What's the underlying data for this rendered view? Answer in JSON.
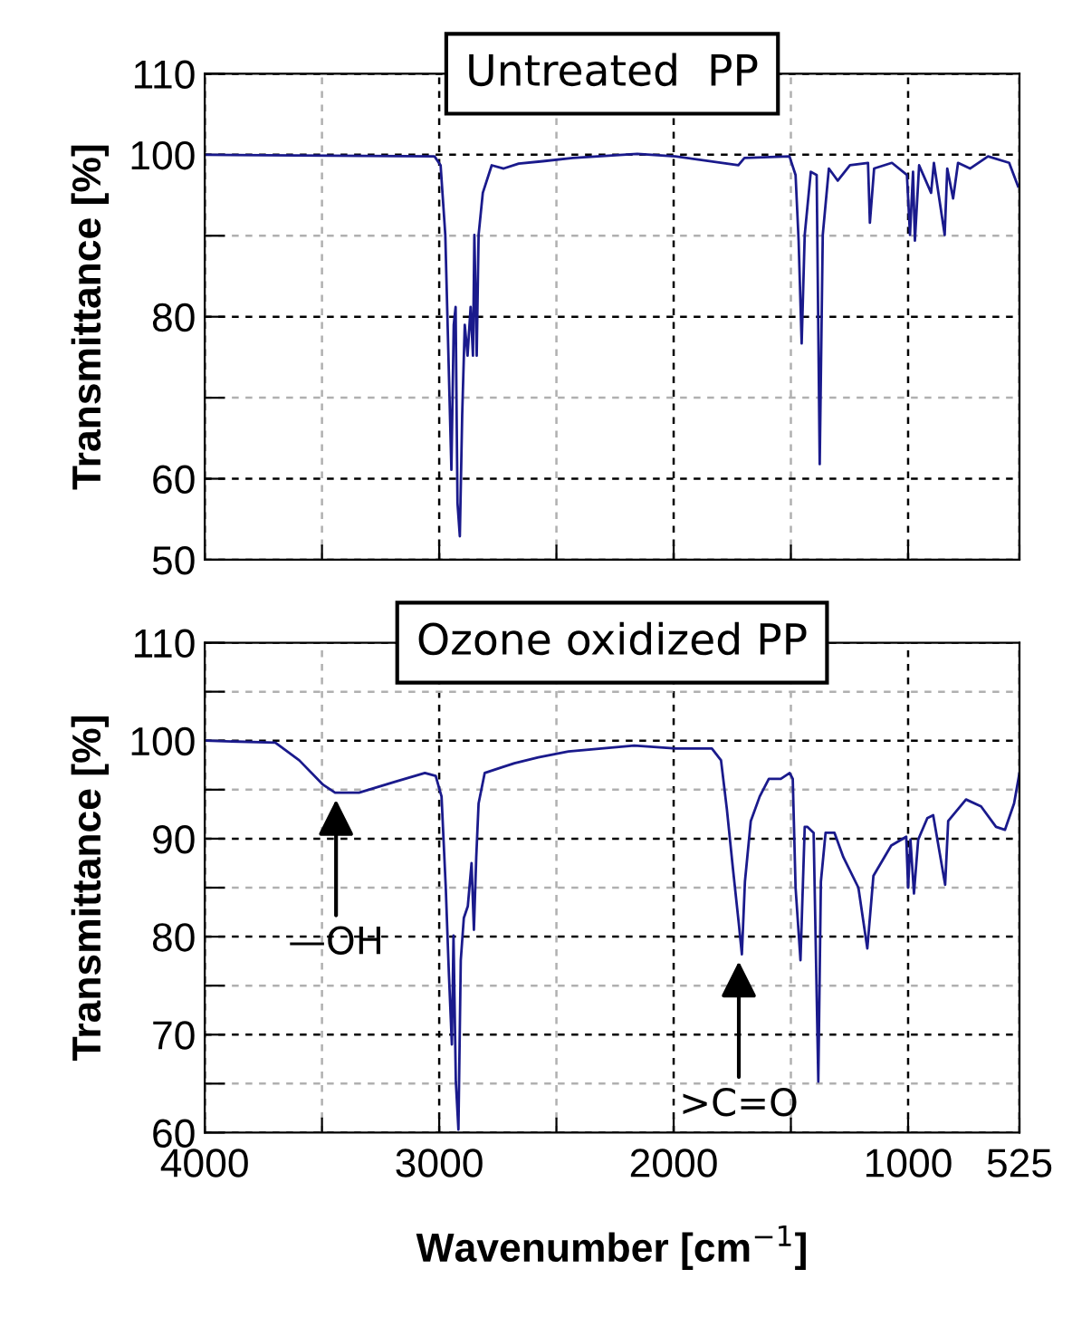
{
  "chart_data": [
    {
      "type": "line",
      "title": "Untreated  PP",
      "ylabel": "Transmittance [%]",
      "xlim": [
        4000,
        525
      ],
      "ylim": [
        50,
        110
      ],
      "xticks": [
        4000,
        {
          "value": 3500,
          "label": null
        },
        3000,
        {
          "value": 2500,
          "label": null
        },
        2000,
        {
          "value": 1500,
          "label": null
        },
        1000,
        525
      ],
      "yticks": [
        50,
        60,
        {
          "value": 70,
          "label": null
        },
        80,
        {
          "value": 90,
          "label": null
        },
        100,
        110
      ],
      "tick_labels": "y",
      "grid": true,
      "series": [
        {
          "color": "#1a1a8c",
          "x": [
            4000,
            3020,
            2994,
            2974,
            2956,
            2948,
            2938,
            2930,
            2922,
            2912,
            2902,
            2891,
            2879,
            2866,
            2856,
            2850,
            2840,
            2832,
            2814,
            2776,
            2725,
            2661,
            2558,
            2430,
            2155,
            1993,
            1724,
            1698,
            1506,
            1480,
            1467,
            1454,
            1441,
            1415,
            1390,
            1377,
            1364,
            1338,
            1300,
            1248,
            1171,
            1163,
            1145,
            1069,
            1005,
            992,
            979,
            971,
            953,
            902,
            890,
            844,
            833,
            808,
            787,
            736,
            659,
            569,
            531
          ],
          "values": [
            100,
            99.8,
            98.7,
            90.1,
            70,
            61.1,
            79,
            81.2,
            57,
            52.9,
            67.8,
            79,
            75.2,
            81.2,
            75.2,
            90.1,
            75.2,
            90.1,
            95.3,
            98.7,
            98.3,
            98.9,
            99.2,
            99.6,
            100.1,
            99.8,
            98.7,
            99.6,
            99.8,
            97.5,
            89.4,
            76.7,
            90.1,
            97.9,
            97.5,
            61.8,
            90.1,
            98.3,
            96.8,
            98.7,
            99.0,
            91.6,
            98.3,
            99.0,
            97.5,
            90.1,
            97.9,
            89.4,
            98.7,
            95.3,
            99.0,
            90.1,
            98.3,
            94.6,
            99.0,
            98.3,
            99.8,
            99.0,
            96.1
          ]
        }
      ]
    },
    {
      "type": "line",
      "title": "Ozone oxidized PP",
      "ylabel": "Transmittance [%]",
      "xlabel": "Wavenumber [cm$^{−1}$]",
      "xlim": [
        4000,
        525
      ],
      "ylim": [
        60,
        110
      ],
      "xticks": [
        4000,
        {
          "value": 3500,
          "label": null
        },
        3000,
        {
          "value": 2500,
          "label": null
        },
        2000,
        {
          "value": 1500,
          "label": null
        },
        1000,
        525
      ],
      "yticks": [
        60,
        {
          "value": 65,
          "label": null
        },
        70,
        {
          "value": 75,
          "label": null
        },
        80,
        {
          "value": 85,
          "label": null
        },
        90,
        {
          "value": 95,
          "label": null
        },
        100,
        {
          "value": 105,
          "label": null
        },
        110
      ],
      "grid": true,
      "annotations": [
        {
          "text": "—OH",
          "x": 3440,
          "y": 94.5
        },
        {
          "text": ">C=O",
          "x": 1722,
          "y": 78.0
        }
      ],
      "series": [
        {
          "color": "#1a1a8c",
          "x": [
            4000,
            3699,
            3597,
            3495,
            3444,
            3342,
            3189,
            3061,
            3015,
            2990,
            2972,
            2959,
            2946,
            2939,
            2929,
            2918,
            2908,
            2895,
            2878,
            2862,
            2852,
            2842,
            2832,
            2806,
            2730,
            2679,
            2577,
            2449,
            2168,
            1990,
            1837,
            1798,
            1773,
            1747,
            1722,
            1709,
            1696,
            1671,
            1633,
            1594,
            1543,
            1505,
            1492,
            1480,
            1459,
            1441,
            1429,
            1403,
            1383,
            1372,
            1352,
            1314,
            1276,
            1212,
            1174,
            1148,
            1072,
            1008,
            1000,
            990,
            975,
            957,
            918,
            893,
            842,
            829,
            753,
            689,
            625,
            587,
            548,
            525
          ],
          "values": [
            100,
            99.8,
            98.0,
            95.5,
            94.7,
            94.7,
            95.8,
            96.7,
            96.4,
            94.3,
            85.0,
            76.4,
            69.0,
            80.1,
            65.2,
            60.3,
            77.6,
            81.9,
            83.1,
            87.5,
            80.7,
            88.1,
            93.6,
            96.7,
            97.3,
            97.7,
            98.3,
            98.9,
            99.5,
            99.2,
            99.2,
            98.0,
            93.0,
            86.9,
            81.3,
            78.2,
            85.6,
            91.8,
            94.3,
            96.1,
            96.1,
            96.7,
            96.1,
            85.0,
            77.6,
            91.2,
            91.2,
            90.6,
            65.2,
            85.6,
            90.6,
            90.6,
            88.1,
            85.0,
            78.8,
            86.2,
            89.3,
            90.2,
            85.0,
            89.9,
            84.4,
            89.9,
            92.1,
            92.4,
            85.3,
            91.8,
            94.0,
            93.3,
            91.2,
            90.9,
            93.6,
            96.7
          ]
        }
      ]
    }
  ]
}
